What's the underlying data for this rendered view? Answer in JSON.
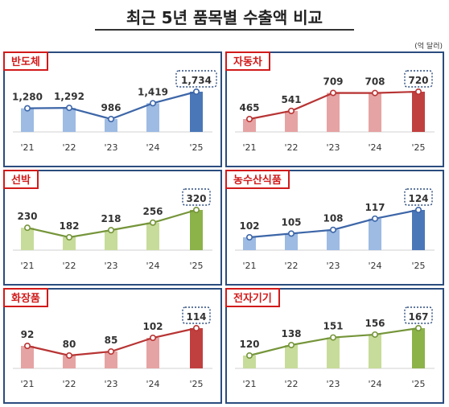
{
  "title": "최근 5년 품목별 수출액 비교",
  "unit": "(억 달러)",
  "chart_data": [
    {
      "type": "bar",
      "title": "반도체",
      "categories": [
        "'21",
        "'22",
        "'23",
        "'24",
        "'25"
      ],
      "values": [
        1280,
        1292,
        986,
        1419,
        1734
      ],
      "value_labels": [
        "1,280",
        "1,292",
        "986",
        "1,419",
        "1,734"
      ],
      "light": "#9dbbe3",
      "dark": "#4a77b8",
      "line": "#3d66a8"
    },
    {
      "type": "bar",
      "title": "자동차",
      "categories": [
        "'21",
        "'22",
        "'23",
        "'24",
        "'25"
      ],
      "values": [
        465,
        541,
        709,
        708,
        720
      ],
      "value_labels": [
        "465",
        "541",
        "709",
        "708",
        "720"
      ],
      "light": "#e6a3a3",
      "dark": "#c0403f",
      "line": "#b83434"
    },
    {
      "type": "bar",
      "title": "선박",
      "categories": [
        "'21",
        "'22",
        "'23",
        "'24",
        "'25"
      ],
      "values": [
        230,
        182,
        218,
        256,
        320
      ],
      "value_labels": [
        "230",
        "182",
        "218",
        "256",
        "320"
      ],
      "light": "#c7dc9a",
      "dark": "#8cb24a",
      "line": "#75953a"
    },
    {
      "type": "bar",
      "title": "농수산식품",
      "categories": [
        "'21",
        "'22",
        "'23",
        "'24",
        "'25"
      ],
      "values": [
        102,
        105,
        108,
        117,
        124
      ],
      "value_labels": [
        "102",
        "105",
        "108",
        "117",
        "124"
      ],
      "light": "#9dbbe3",
      "dark": "#4a77b8",
      "line": "#3d66a8"
    },
    {
      "type": "bar",
      "title": "화장품",
      "categories": [
        "'21",
        "'22",
        "'23",
        "'24",
        "'25"
      ],
      "values": [
        92,
        80,
        85,
        102,
        114
      ],
      "value_labels": [
        "92",
        "80",
        "85",
        "102",
        "114"
      ],
      "light": "#e6a3a3",
      "dark": "#c0403f",
      "line": "#b83434"
    },
    {
      "type": "bar",
      "title": "전자기기",
      "categories": [
        "'21",
        "'22",
        "'23",
        "'24",
        "'25"
      ],
      "values": [
        120,
        138,
        151,
        156,
        167
      ],
      "value_labels": [
        "120",
        "138",
        "151",
        "156",
        "167"
      ],
      "light": "#c7dc9a",
      "dark": "#8cb24a",
      "line": "#75953a"
    }
  ]
}
